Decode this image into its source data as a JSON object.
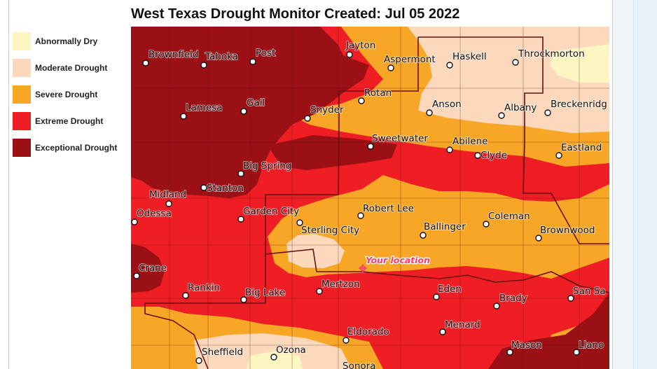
{
  "title": "West Texas Drought Monitor Created: Jul 05 2022",
  "colors": {
    "abnormally_dry": "#fef6c1",
    "moderate_drought": "#fcd9bd",
    "severe_drought": "#f7a626",
    "extreme_drought": "#ee1e24",
    "exceptional_drought": "#9b1015",
    "boundary": "#6a0f0f",
    "location_marker": "#ff3b6b"
  },
  "legend": [
    {
      "label": "Abnormally Dry",
      "color": "#fef6c1"
    },
    {
      "label": "Moderate Drought",
      "color": "#fcd9bd"
    },
    {
      "label": "Severe Drought",
      "color": "#f7a626"
    },
    {
      "label": "Extreme Drought",
      "color": "#ee1e24"
    },
    {
      "label": "Exceptional Drought",
      "color": "#9b1015"
    }
  ],
  "cities": [
    "Brownfield",
    "Tahoka",
    "Post",
    "Jayton",
    "Aspermont",
    "Haskell",
    "Throckmorton",
    "Lamesa",
    "Gail",
    "Snyder",
    "Rotan",
    "Anson",
    "Albany",
    "Breckenridg",
    "Sweetwater",
    "Abilene",
    "Clyde",
    "Eastland",
    "Big Spring",
    "Stanton",
    "Midland",
    "Odessa",
    "Garden City",
    "Robert Lee",
    "Sterling City",
    "Ballinger",
    "Coleman",
    "Brownwood",
    "Crane",
    "Rankin",
    "Big Lake",
    "Mertzon",
    "Eden",
    "Brady",
    "San Sa",
    "Eldorado",
    "Menard",
    "Sheffield",
    "Ozona",
    "Sonora",
    "Mason",
    "Llano"
  ],
  "your_location": "Your location"
}
